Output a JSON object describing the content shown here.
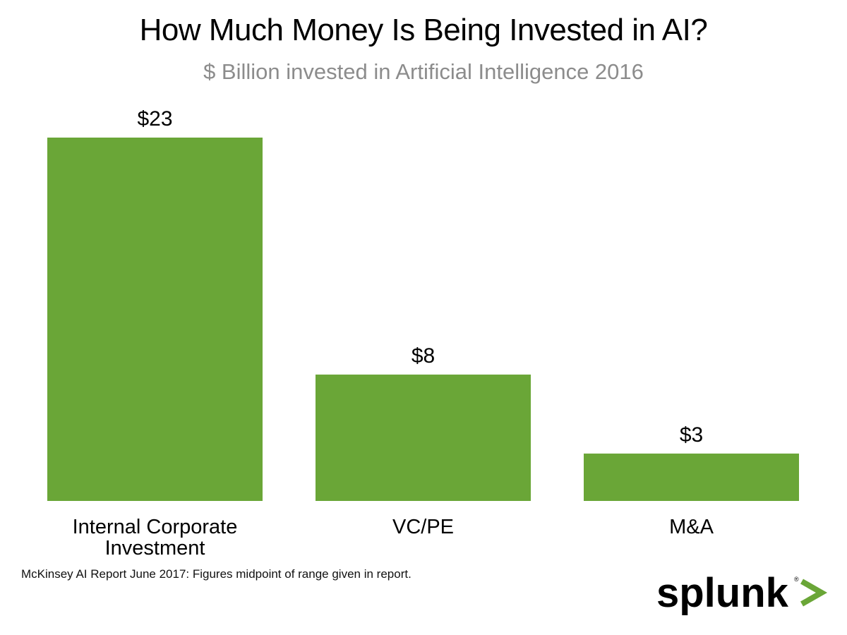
{
  "chart_data": {
    "type": "bar",
    "title": "How Much Money Is Being Invested in AI?",
    "subtitle": "$ Billion invested in Artificial Intelligence 2016",
    "categories": [
      "Internal Corporate Investment",
      "VC/PE",
      "M&A"
    ],
    "category_lines": [
      [
        "Internal Corporate",
        "Investment"
      ],
      [
        "VC/PE"
      ],
      [
        "M&A"
      ]
    ],
    "values": [
      23,
      8,
      3
    ],
    "value_labels": [
      "$23",
      "$8",
      "$3"
    ],
    "xlabel": "",
    "ylabel": "",
    "ylim": [
      0,
      23
    ],
    "grid": false,
    "bar_color": "#6aa637"
  },
  "footnote": "McKinsey AI Report June 2017: Figures midpoint of range given in report.",
  "logo": {
    "text": "splunk",
    "mark": ">",
    "text_color": "#000000",
    "mark_color": "#6aa637"
  }
}
